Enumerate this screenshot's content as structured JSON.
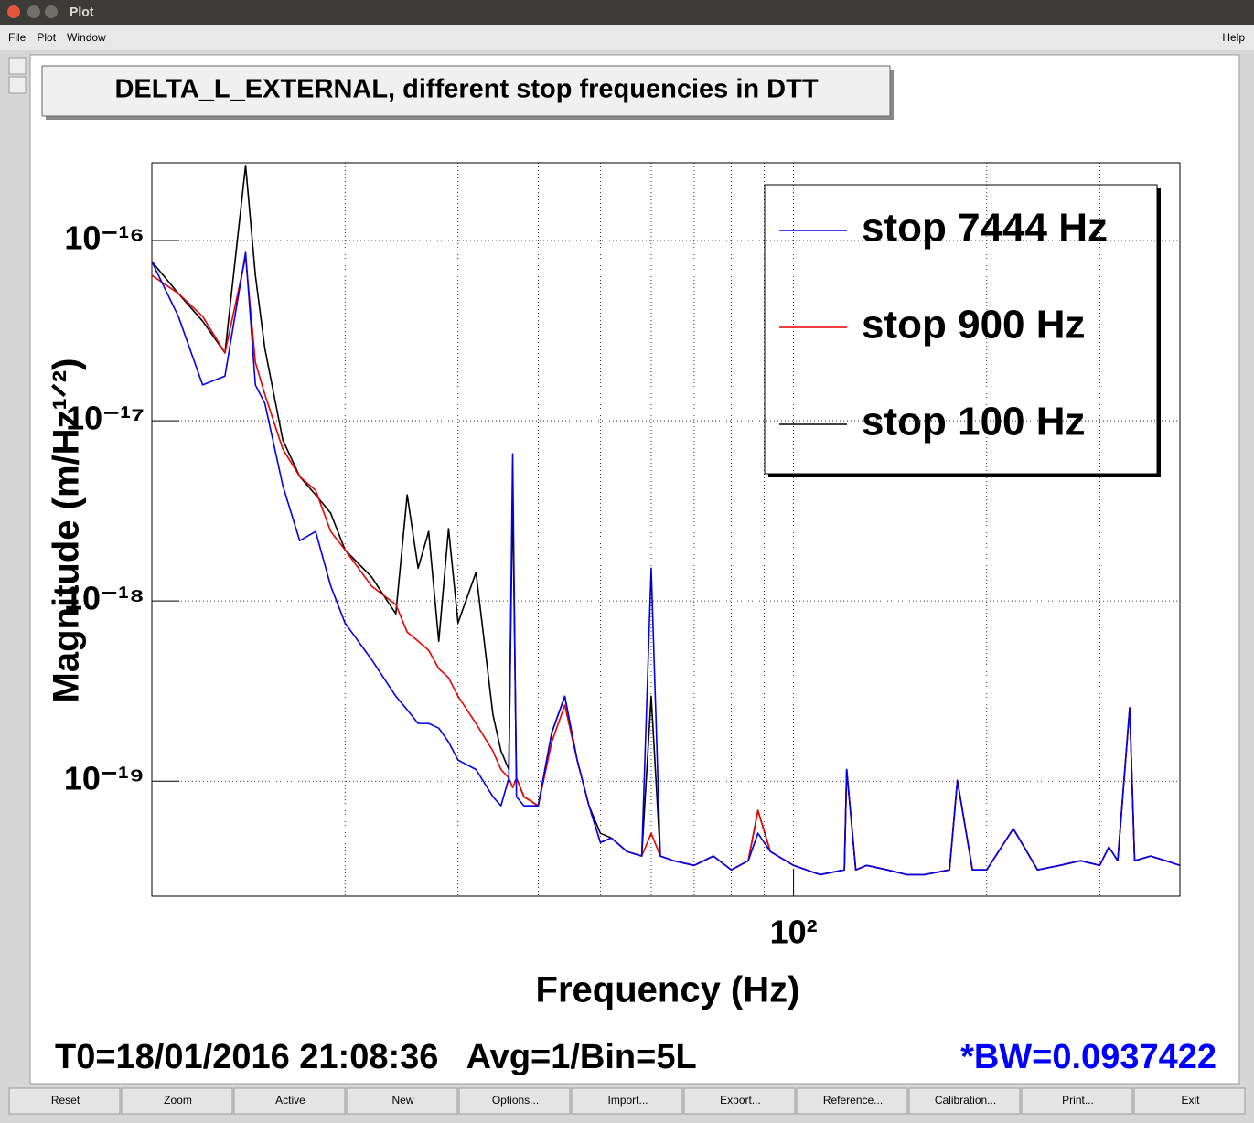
{
  "window": {
    "title": "Plot",
    "menu": [
      "File",
      "Plot",
      "Window"
    ],
    "help": "Help",
    "buttons": [
      "Reset",
      "Zoom",
      "Active",
      "New",
      "Options...",
      "Import...",
      "Export...",
      "Reference...",
      "Calibration...",
      "Print...",
      "Exit"
    ]
  },
  "chart_data": {
    "type": "line",
    "title": "DELTA_L_EXTERNAL, different stop frequencies in DTT",
    "xlabel": "Frequency (Hz)",
    "ylabel": "Magnitude (m/Hz¹ᐟ²)",
    "xscale": "log",
    "yscale": "log",
    "grid": true,
    "legend": "upper right",
    "xlim": [
      10,
      400
    ],
    "ylim": [
      2.3e-20,
      2.7e-16
    ],
    "xticks": [
      {
        "value": 100,
        "label": "10²"
      }
    ],
    "xgrid": [
      20,
      30,
      40,
      50,
      60,
      70,
      80,
      90,
      200,
      300
    ],
    "yticks": [
      {
        "value": 1e-16,
        "label": "10⁻¹⁶"
      },
      {
        "value": 1e-17,
        "label": "10⁻¹⁷"
      },
      {
        "value": 1e-18,
        "label": "10⁻¹⁸"
      },
      {
        "value": 1e-19,
        "label": "10⁻¹⁹"
      }
    ],
    "x": [
      10,
      11,
      12,
      13,
      14,
      14.5,
      15,
      16,
      17,
      18,
      19,
      20,
      22,
      24,
      25,
      26,
      27,
      28,
      29,
      30,
      32,
      34,
      35,
      36,
      36.5,
      37,
      38,
      40,
      42,
      44,
      46,
      48,
      50,
      52,
      55,
      58,
      60,
      62,
      65,
      70,
      75,
      80,
      85,
      88,
      92,
      100,
      110,
      120,
      121,
      125,
      130,
      140,
      150,
      160,
      175,
      180,
      190,
      200,
      220,
      240,
      260,
      280,
      300,
      310,
      320,
      334,
      340,
      360,
      380,
      400
    ],
    "series": [
      {
        "name": "stop 7444 Hz",
        "color": "#0000ee",
        "values": [
          7.64e-17,
          3.79e-17,
          1.58e-17,
          1.77e-17,
          8.59e-17,
          1.58e-17,
          1.25e-17,
          4.36e-18,
          2.16e-18,
          2.43e-18,
          1.21e-18,
          7.55e-19,
          4.73e-19,
          2.96e-19,
          2.49e-19,
          2.09e-19,
          2.09e-19,
          1.97e-19,
          1.65e-19,
          1.31e-19,
          1.16e-19,
          8.2e-20,
          7.3e-20,
          1.04e-19,
          6.56e-18,
          8.2e-20,
          7.3e-20,
          7.3e-20,
          1.86e-19,
          2.96e-19,
          1.31e-19,
          7.3e-20,
          4.57e-20,
          4.84e-20,
          4.07e-20,
          3.84e-20,
          1.52e-18,
          3.84e-20,
          3.62e-20,
          3.41e-20,
          3.84e-20,
          3.22e-20,
          3.62e-20,
          5.14e-20,
          4.07e-20,
          3.41e-20,
          3.03e-20,
          3.22e-20,
          1.16e-19,
          3.22e-20,
          3.41e-20,
          3.22e-20,
          3.03e-20,
          3.03e-20,
          3.22e-20,
          1.01e-19,
          3.22e-20,
          3.22e-20,
          5.45e-20,
          3.22e-20,
          3.41e-20,
          3.62e-20,
          3.41e-20,
          4.31e-20,
          3.62e-20,
          2.55e-19,
          3.62e-20,
          3.84e-20,
          3.62e-20,
          3.41e-20
        ]
      },
      {
        "name": "stop 900 Hz",
        "color": "#ee0000",
        "values": [
          6.41e-17,
          5.08e-17,
          3.79e-17,
          2.38e-17,
          8.1e-17,
          2.11e-17,
          1.4e-17,
          6.96e-18,
          4.9e-18,
          4.11e-18,
          2.43e-18,
          1.92e-18,
          1.21e-18,
          9.55e-19,
          6.71e-19,
          5.98e-19,
          5.32e-19,
          4.21e-19,
          3.75e-19,
          2.96e-19,
          2.09e-19,
          1.47e-19,
          1.16e-19,
          1.04e-19,
          9.21e-20,
          1.04e-19,
          8.2e-20,
          7.3e-20,
          1.65e-19,
          2.64e-19,
          1.31e-19,
          7.3e-20,
          4.57e-20,
          4.84e-20,
          4.07e-20,
          3.84e-20,
          5.14e-20,
          3.84e-20,
          3.62e-20,
          3.41e-20,
          3.84e-20,
          3.22e-20,
          3.62e-20,
          6.88e-20,
          4.07e-20,
          3.41e-20,
          3.03e-20,
          3.22e-20,
          1.16e-19,
          3.22e-20,
          3.41e-20,
          3.22e-20,
          3.03e-20,
          3.03e-20,
          3.22e-20,
          1.01e-19,
          3.22e-20,
          3.22e-20,
          5.45e-20,
          3.22e-20,
          3.41e-20,
          3.62e-20,
          3.41e-20,
          4.31e-20,
          3.62e-20,
          2.55e-19,
          3.62e-20,
          3.84e-20,
          3.62e-20,
          3.41e-20
        ]
      },
      {
        "name": "stop 100 Hz",
        "color": "#000000",
        "values": [
          7.64e-17,
          5.08e-17,
          3.57e-17,
          2.38e-17,
          2.61e-16,
          6.41e-17,
          2.52e-17,
          7.82e-18,
          4.9e-18,
          3.88e-18,
          3.07e-18,
          1.92e-18,
          1.36e-18,
          8.49e-19,
          3.88e-18,
          1.52e-18,
          2.43e-18,
          5.98e-19,
          2.52e-18,
          7.55e-19,
          1.44e-18,
          2.35e-19,
          1.47e-19,
          1.16e-19,
          4.02e-18,
          1.04e-19,
          8.2e-20,
          7.3e-20,
          1.86e-19,
          2.96e-19,
          1.31e-19,
          7.3e-20,
          5.14e-20,
          4.84e-20,
          4.07e-20,
          3.84e-20,
          2.96e-19,
          3.84e-20,
          3.62e-20,
          3.41e-20,
          3.84e-20,
          3.22e-20,
          3.62e-20,
          6.88e-20,
          4.07e-20,
          3.41e-20,
          3.03e-20,
          3.22e-20,
          1.16e-19,
          3.22e-20,
          3.41e-20,
          3.22e-20,
          3.03e-20,
          3.03e-20,
          3.22e-20,
          1.01e-19,
          3.22e-20,
          3.22e-20,
          5.45e-20,
          3.22e-20,
          3.41e-20,
          3.62e-20,
          3.41e-20,
          4.31e-20,
          3.62e-20,
          2.55e-19,
          3.62e-20,
          3.84e-20,
          3.62e-20,
          3.41e-20
        ]
      }
    ],
    "annotations": [
      {
        "text": "T0=18/01/2016 21:08:36   Avg=1/Bin=5L",
        "color": "#000000"
      },
      {
        "text": "*BW=0.0937422",
        "color": "#0000ff"
      }
    ]
  }
}
